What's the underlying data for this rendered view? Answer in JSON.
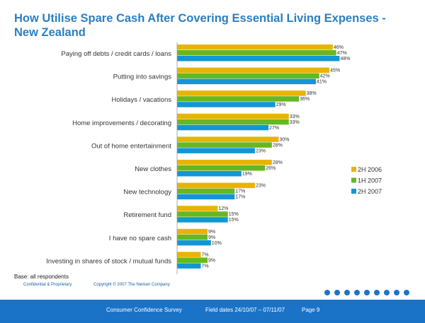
{
  "title": "How Utilise Spare Cash After Covering Essential Living Expenses - New Zealand",
  "base_note": "Base: all respondents",
  "confidential": "Confidential & Proprietary",
  "copyright": "Copyright © 2007 The Nielsen Company",
  "footer": {
    "survey": "Consumer Confidence Survey",
    "field_dates": "Field dates 24/10/07 – 07/11/07",
    "page": "Page 9"
  },
  "colors": {
    "2H 2006": "#e8b400",
    "1H 2007": "#66b821",
    "2H 2007": "#1296d4",
    "accent": "#1b73c8"
  },
  "chart_data": {
    "type": "bar",
    "orientation": "horizontal",
    "categories": [
      "Paying off debts / credit cards / loans",
      "Putting into savings",
      "Holidays / vacations",
      "Home improvements / decorating",
      "Out of home entertainment",
      "New clothes",
      "New technology",
      "Retirement fund",
      "I have no spare cash",
      "Investing in shares of stock / mutual funds"
    ],
    "series": [
      {
        "name": "2H 2006",
        "values": [
          46,
          45,
          38,
          33,
          30,
          28,
          23,
          12,
          9,
          7
        ]
      },
      {
        "name": "1H 2007",
        "values": [
          47,
          42,
          36,
          33,
          28,
          26,
          17,
          15,
          9,
          9
        ]
      },
      {
        "name": "2H 2007",
        "values": [
          48,
          41,
          29,
          27,
          23,
          19,
          17,
          15,
          10,
          7
        ]
      }
    ],
    "value_suffix": "%",
    "legend_position": "right",
    "grid": false
  }
}
